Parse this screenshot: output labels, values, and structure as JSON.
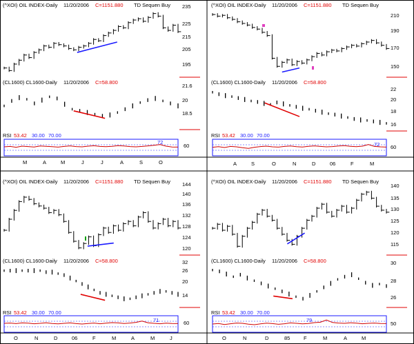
{
  "colors": {
    "frame": "#000000",
    "price": "#000000",
    "red": "#e00000",
    "blue": "#1a1aff",
    "magenta": "#e040c0",
    "green": "#00a000",
    "rsi_line": "#d00000"
  },
  "panels": [
    {
      "oil": {
        "title": "(^XOI) OIL INDEX-Daily",
        "date": "11/20/2006",
        "close": "C=1151.880",
        "study": "TD Sequen Buy",
        "ticks": [
          "235",
          "225",
          "215",
          "205",
          "195"
        ]
      },
      "crude": {
        "title": "(CL1600) CL1600-Daily",
        "date": "11/20/2006",
        "close": "C=58.800",
        "ticks": [
          "21.6",
          "20",
          "18.5"
        ]
      },
      "rsi": {
        "label": "RSI",
        "value": "53.42",
        "lower": "30.00",
        "upper": "70.00",
        "marker": "72",
        "tick": "60"
      },
      "months": [
        "M",
        "A",
        "M",
        "J",
        "J",
        "A",
        "S",
        "O"
      ]
    },
    {
      "oil": {
        "title": "(^XOI) OIL INDEX-Daily",
        "date": "11/20/2006",
        "close": "C=1151.880",
        "study": "TD Sequen Buy",
        "ticks": [
          "210",
          "190",
          "170",
          "150"
        ]
      },
      "crude": {
        "title": "(CL1600) CL1600-Daily",
        "date": "11/20/2006",
        "close": "C=58.800",
        "ticks": [
          "22",
          "20",
          "18",
          "16"
        ]
      },
      "rsi": {
        "label": "RSI",
        "value": "53.42",
        "lower": "30.00",
        "upper": "70.00",
        "marker": "72",
        "tick": "60"
      },
      "months": [
        "A",
        "S",
        "O",
        "N",
        "D",
        "06",
        "F",
        "M"
      ]
    },
    {
      "oil": {
        "title": "(^XOI) OIL INDEX-Daily",
        "date": "11/20/2006",
        "close": "C=1151.880",
        "study": "TD Sequen Buy",
        "ticks": [
          "144",
          "140",
          "136",
          "132",
          "128",
          "124",
          "120"
        ]
      },
      "crude": {
        "title": "(CL1600) CL1600-Daily",
        "date": "11/20/2006",
        "close": "C=58.800",
        "ticks": [
          "32",
          "26",
          "20",
          "14"
        ]
      },
      "rsi": {
        "label": "RSI",
        "value": "53.42",
        "lower": "30.00",
        "upper": "70.00",
        "marker": "71",
        "tick": "60"
      },
      "months": [
        "O",
        "N",
        "D",
        "06",
        "F",
        "M",
        "A",
        "M",
        "J"
      ]
    },
    {
      "oil": {
        "title": "(^XOI) OIL INDEX-Daily",
        "date": "11/20/2006",
        "close": "C=1151.880",
        "study": "TD Sequen Buy",
        "ticks": [
          "140",
          "135",
          "130",
          "125",
          "120",
          "115"
        ]
      },
      "crude": {
        "title": "(CL1600) CL1600-Daily",
        "date": "11/20/2006",
        "close": "C=58.800",
        "ticks": [
          "30",
          "28",
          "26"
        ]
      },
      "rsi": {
        "label": "RSI",
        "value": "53.42",
        "lower": "30.00",
        "upper": "70.00",
        "marker": "79",
        "tick": "50"
      },
      "months": [
        "O",
        "N",
        "D",
        "85",
        "F",
        "M",
        "A",
        "M"
      ]
    }
  ],
  "chart_data": [
    {
      "type": "line",
      "title": "(^XOI) OIL INDEX-Daily 11/20/2006 C=1151.880 TD Sequen Buy",
      "ylim": [
        188,
        238
      ],
      "y": [
        193,
        191,
        196,
        199,
        203,
        201,
        205,
        207,
        210,
        209,
        212,
        211,
        210,
        208,
        207,
        209,
        210,
        212,
        215,
        214,
        218,
        220,
        222,
        225,
        224,
        228,
        230,
        231,
        229,
        232,
        235,
        233,
        224,
        222,
        226,
        221
      ],
      "trendlines": [
        {
          "color": "blue",
          "from": [
            0.42,
            205
          ],
          "to": [
            0.65,
            213
          ]
        }
      ]
    },
    {
      "type": "bar",
      "title": "(CL1600) CL1600-Daily 11/20/2006 C=58.800",
      "ylim": [
        17.5,
        22.5
      ],
      "values": [
        20.2,
        20.8,
        21.2,
        21.0,
        20.5,
        20.9,
        21.3,
        21.1,
        20.4,
        19.8,
        19.6,
        19.4,
        19.2,
        19.0,
        19.1,
        19.4,
        19.8,
        20.2,
        20.6,
        20.9,
        21.1,
        20.8,
        20.5,
        20.2
      ],
      "trendlines": [
        {
          "color": "red",
          "from": [
            0.4,
            19.6
          ],
          "to": [
            0.58,
            18.7
          ]
        }
      ]
    },
    {
      "type": "line",
      "title": "RSI 53.42 30.00 70.00",
      "ylim": [
        0,
        100
      ],
      "y": [
        55,
        58,
        52,
        60,
        57,
        54,
        61,
        59,
        56,
        53,
        58,
        62,
        57,
        55,
        60,
        63,
        58,
        56,
        59,
        64,
        61,
        57,
        55,
        58,
        62,
        66,
        72,
        60,
        54,
        53
      ]
    },
    {
      "type": "line",
      "title": "(^XOI) OIL INDEX-Daily 11/20/2006 C=1151.880 TD Sequen Buy",
      "ylim": [
        140,
        220
      ],
      "y": [
        214,
        212,
        213,
        210,
        208,
        205,
        203,
        201,
        198,
        196,
        192,
        188,
        160,
        150,
        155,
        158,
        152,
        156,
        154,
        158,
        162,
        166,
        164,
        168,
        170,
        169,
        172,
        174,
        176,
        175,
        178,
        180,
        182,
        179,
        176,
        172
      ],
      "trendlines": [
        {
          "color": "blue",
          "from": [
            0.4,
            143
          ],
          "to": [
            0.5,
            148
          ]
        }
      ]
    },
    {
      "type": "bar",
      "title": "(CL1600) CL1600-Daily 11/20/2006 C=58.800",
      "ylim": [
        15,
        23.5
      ],
      "values": [
        22.4,
        22.0,
        21.7,
        21.5,
        21.2,
        20.9,
        20.6,
        20.4,
        20.1,
        19.9,
        20.3,
        20.0,
        19.7,
        19.4,
        19.1,
        18.9,
        18.6,
        18.3,
        18.0,
        17.8,
        17.5,
        17.2,
        16.9,
        16.7,
        16.6,
        16.4,
        16.2,
        16.0
      ],
      "trendlines": [
        {
          "color": "red",
          "from": [
            0.3,
            20.2
          ],
          "to": [
            0.5,
            17.4
          ]
        }
      ]
    },
    {
      "type": "line",
      "title": "RSI 53.42 30.00 70.00",
      "ylim": [
        0,
        100
      ],
      "y": [
        52,
        56,
        50,
        58,
        55,
        49,
        44,
        52,
        57,
        60,
        55,
        53,
        58,
        61,
        56,
        54,
        59,
        62,
        58,
        55,
        57,
        61,
        64,
        59,
        56,
        60,
        72,
        58,
        55,
        53
      ]
    },
    {
      "type": "line",
      "title": "(^XOI) OIL INDEX-Daily 11/20/2006 C=1151.880 TD Sequen Buy",
      "ylim": [
        117,
        147
      ],
      "y": [
        127,
        132,
        136,
        140,
        142,
        141,
        139,
        138,
        137,
        135,
        136,
        134,
        131,
        126,
        122,
        119,
        121,
        124,
        120,
        125,
        128,
        126,
        129,
        127,
        130,
        131,
        129,
        133,
        135,
        131,
        128,
        130,
        132,
        129,
        131,
        128
      ],
      "trendlines": [
        {
          "color": "blue",
          "from": [
            0.48,
            119.8
          ],
          "to": [
            0.63,
            121.2
          ]
        }
      ]
    },
    {
      "type": "bar",
      "title": "(CL1600) CL1600-Daily 11/20/2006 C=58.800",
      "ylim": [
        8,
        35
      ],
      "values": [
        31,
        31,
        31,
        31,
        31,
        31,
        31,
        30,
        30,
        29,
        28,
        26,
        24,
        22,
        20,
        18,
        16,
        15,
        14,
        13,
        12,
        12,
        13,
        14,
        15,
        16,
        17,
        17,
        16,
        15
      ],
      "trendlines": [
        {
          "color": "red",
          "from": [
            0.44,
            15
          ],
          "to": [
            0.58,
            11
          ]
        }
      ]
    },
    {
      "type": "line",
      "title": "RSI 53.42 30.00 70.00",
      "ylim": [
        0,
        100
      ],
      "y": [
        55,
        57,
        53,
        58,
        56,
        52,
        55,
        59,
        54,
        51,
        55,
        58,
        53,
        50,
        54,
        57,
        52,
        56,
        60,
        58,
        54,
        57,
        62,
        71,
        59,
        55,
        52,
        56,
        54,
        53
      ]
    },
    {
      "type": "line",
      "title": "(^XOI) OIL INDEX-Daily 11/20/2006 C=1151.880 TD Sequen Buy",
      "ylim": [
        110,
        143
      ],
      "y": [
        122,
        124,
        121,
        123,
        119,
        113,
        118,
        122,
        125,
        129,
        131,
        128,
        126,
        122,
        119,
        116,
        114,
        118,
        122,
        126,
        128,
        132,
        134,
        130,
        128,
        131,
        133,
        130,
        132,
        136,
        139,
        140,
        137,
        133,
        131,
        130
      ],
      "trendlines": [
        {
          "color": "blue",
          "from": [
            0.43,
            114.2
          ],
          "to": [
            0.53,
            119.6
          ]
        }
      ]
    },
    {
      "type": "bar",
      "title": "(CL1600) CL1600-Daily 11/20/2006 C=58.800",
      "ylim": [
        25,
        31
      ],
      "values": [
        30.2,
        30.0,
        29.6,
        29.2,
        29.5,
        29.0,
        28.6,
        28.2,
        27.8,
        27.4,
        27.0,
        26.6,
        26.2,
        25.9,
        26.4,
        27.0,
        27.6,
        28.2,
        28.8,
        29.2,
        29.5,
        28.9,
        28.3,
        27.9,
        28.1,
        27.8
      ],
      "trendlines": [
        {
          "color": "red",
          "from": [
            0.35,
            26.3
          ],
          "to": [
            0.46,
            25.9
          ]
        }
      ]
    },
    {
      "type": "line",
      "title": "RSI 53.42 30.00 70.00",
      "ylim": [
        0,
        100
      ],
      "y": [
        50,
        54,
        46,
        52,
        57,
        55,
        49,
        45,
        51,
        56,
        53,
        48,
        52,
        58,
        55,
        51,
        54,
        60,
        63,
        79,
        61,
        57,
        55,
        59,
        56,
        52,
        55,
        57,
        54,
        53
      ]
    }
  ]
}
